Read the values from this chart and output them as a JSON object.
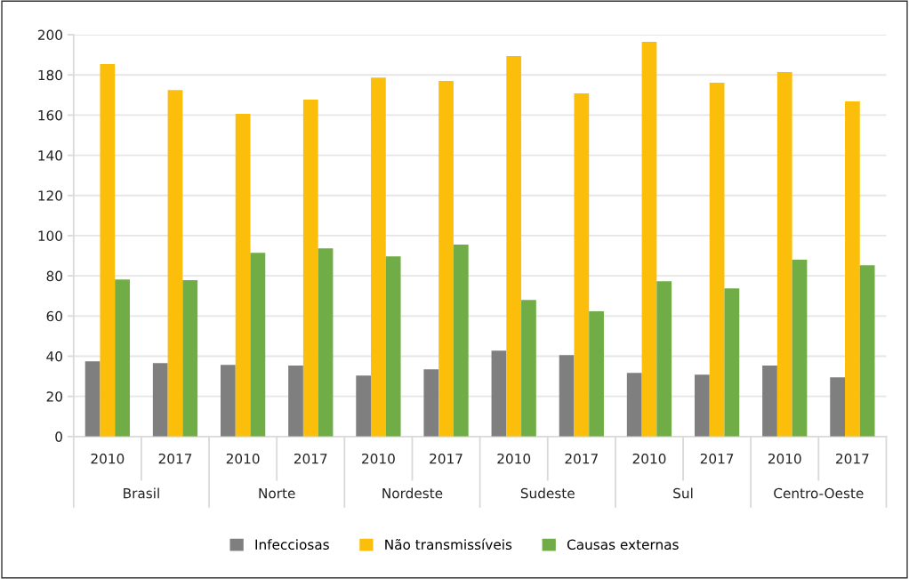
{
  "chart_data": {
    "type": "bar",
    "categories": [
      "2010",
      "2017",
      "2010",
      "2017",
      "2010",
      "2017",
      "2010",
      "2017",
      "2010",
      "2017",
      "2010",
      "2017"
    ],
    "annotations": [
      "Brasil",
      "Norte",
      "Nordeste",
      "Sudeste",
      "Sul",
      "Centro-Oeste"
    ],
    "series": [
      {
        "name": "Infecciosas",
        "color": "#7f7f7f",
        "values": [
          37.5,
          36.6,
          35.7,
          35.3,
          30.4,
          33.5,
          42.8,
          40.6,
          31.7,
          30.8,
          35.3,
          29.5
        ]
      },
      {
        "name": "Não transmissíveis",
        "color": "#fbbf0b",
        "values": [
          185.4,
          172.5,
          160.6,
          167.7,
          178.7,
          177.0,
          189.4,
          170.8,
          196.5,
          176.1,
          181.4,
          166.8
        ]
      },
      {
        "name": "Causas externas",
        "color": "#70ad47",
        "values": [
          78.2,
          77.8,
          91.5,
          93.7,
          89.7,
          95.5,
          68.0,
          62.3,
          77.3,
          73.8,
          88.0,
          85.3
        ]
      }
    ],
    "ylim": [
      0,
      200
    ],
    "yticks": [
      0,
      20,
      40,
      60,
      80,
      100,
      120,
      140,
      160,
      180,
      200
    ],
    "grid": "y",
    "legend": "bottom"
  }
}
